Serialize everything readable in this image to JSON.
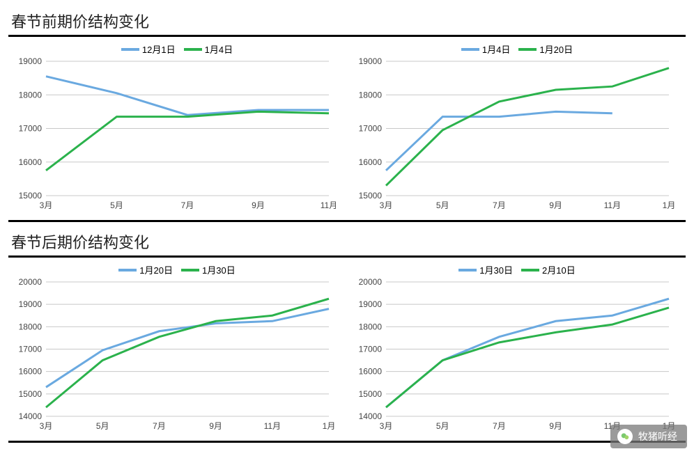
{
  "section1_title": "春节前期价结构变化",
  "section2_title": "春节后期价结构变化",
  "watermark_text": "牧猪听经",
  "colors": {
    "blue": "#6aa9e0",
    "green": "#2bb24c",
    "grid": "#c8c8c8",
    "axis": "#444444",
    "border": "#000000"
  },
  "charts": [
    {
      "id": "c1",
      "legend": [
        {
          "label": "12月1日",
          "color": "#6aa9e0"
        },
        {
          "label": "1月4日",
          "color": "#2bb24c"
        }
      ],
      "ylim": [
        15000,
        19000
      ],
      "ytick_step": 1000,
      "x_labels": [
        "3月",
        "5月",
        "7月",
        "9月",
        "11月"
      ],
      "x_points": [
        "3月",
        "5月",
        "7月",
        "9月",
        "11月"
      ],
      "series": [
        {
          "color": "#6aa9e0",
          "values": [
            18550,
            18050,
            17400,
            17550,
            17550
          ]
        },
        {
          "color": "#2bb24c",
          "values": [
            15750,
            17350,
            17350,
            17500,
            17450
          ]
        }
      ],
      "label_fontsize": 12
    },
    {
      "id": "c2",
      "legend": [
        {
          "label": "1月4日",
          "color": "#6aa9e0"
        },
        {
          "label": "1月20日",
          "color": "#2bb24c"
        }
      ],
      "ylim": [
        15000,
        19000
      ],
      "ytick_step": 1000,
      "x_labels": [
        "3月",
        "5月",
        "7月",
        "9月",
        "11月",
        "1月"
      ],
      "x_points": [
        "3月",
        "5月",
        "7月",
        "9月",
        "11月",
        "1月"
      ],
      "series": [
        {
          "color": "#6aa9e0",
          "values": [
            15750,
            17350,
            17350,
            17500,
            17450,
            null
          ]
        },
        {
          "color": "#2bb24c",
          "values": [
            15300,
            16950,
            17800,
            18150,
            18250,
            18800
          ]
        }
      ],
      "label_fontsize": 12
    },
    {
      "id": "c3",
      "legend": [
        {
          "label": "1月20日",
          "color": "#6aa9e0"
        },
        {
          "label": "1月30日",
          "color": "#2bb24c"
        }
      ],
      "ylim": [
        14000,
        20000
      ],
      "ytick_step": 1000,
      "x_labels": [
        "3月",
        "5月",
        "7月",
        "9月",
        "11月",
        "1月"
      ],
      "x_points": [
        "3月",
        "5月",
        "7月",
        "9月",
        "11月",
        "1月"
      ],
      "series": [
        {
          "color": "#6aa9e0",
          "values": [
            15300,
            16950,
            17800,
            18150,
            18250,
            18800
          ]
        },
        {
          "color": "#2bb24c",
          "values": [
            14400,
            16500,
            17550,
            18250,
            18500,
            19250
          ]
        }
      ],
      "label_fontsize": 12
    },
    {
      "id": "c4",
      "legend": [
        {
          "label": "1月30日",
          "color": "#6aa9e0"
        },
        {
          "label": "2月10日",
          "color": "#2bb24c"
        }
      ],
      "ylim": [
        14000,
        20000
      ],
      "ytick_step": 1000,
      "x_labels": [
        "3月",
        "5月",
        "7月",
        "9月",
        "11月",
        "1月"
      ],
      "x_points": [
        "3月",
        "5月",
        "7月",
        "9月",
        "11月",
        "1月"
      ],
      "series": [
        {
          "color": "#6aa9e0",
          "values": [
            14400,
            16500,
            17550,
            18250,
            18500,
            19250
          ]
        },
        {
          "color": "#2bb24c",
          "values": [
            14400,
            16500,
            17300,
            17750,
            18100,
            18850
          ]
        }
      ],
      "label_fontsize": 12
    }
  ]
}
